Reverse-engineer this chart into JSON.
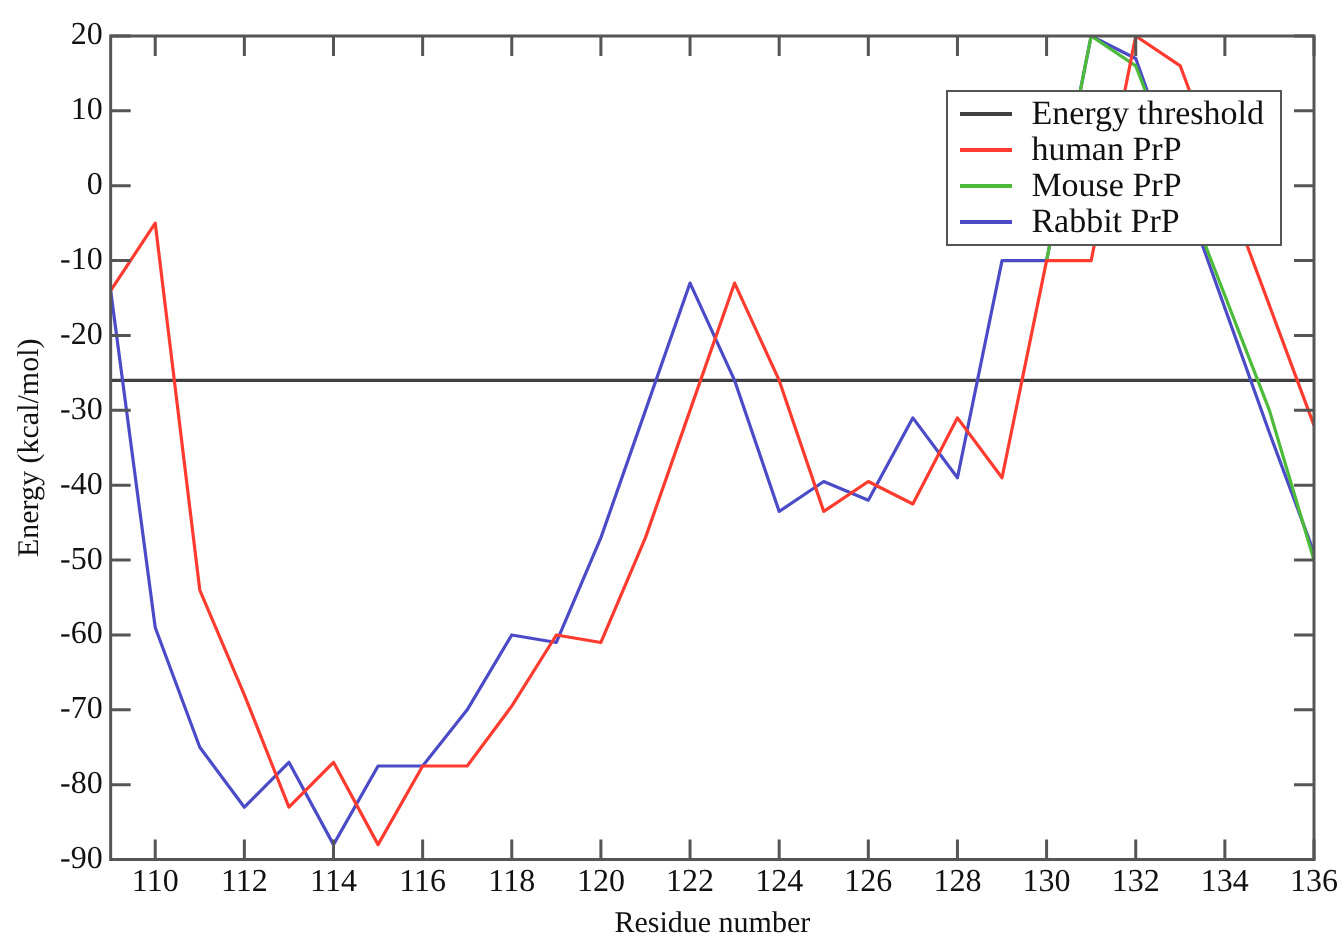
{
  "chart_data": {
    "type": "line",
    "xlabel": "Residue number",
    "ylabel": "Energy (kcal/mol)",
    "x": [
      109,
      110,
      111,
      112,
      113,
      114,
      115,
      116,
      117,
      118,
      119,
      120,
      121,
      122,
      123,
      124,
      125,
      126,
      127,
      128,
      129,
      130,
      131,
      132,
      133,
      134,
      135,
      136
    ],
    "series": [
      {
        "name": "human PrP",
        "color": "#ff3b2f",
        "values": [
          -14,
          -5,
          -54,
          -68,
          -83,
          -77,
          -88,
          -77.5,
          -77.5,
          -69.5,
          -60,
          -61,
          -47,
          -30,
          -13,
          -26,
          -43.5,
          -39.5,
          -42.5,
          -31,
          -39,
          -10,
          -10,
          20,
          16,
          null,
          null,
          -32
        ]
      },
      {
        "name": "Mouse PrP",
        "color": "#4cbb3a",
        "values": [
          null,
          null,
          null,
          null,
          null,
          null,
          null,
          null,
          null,
          null,
          null,
          null,
          null,
          null,
          null,
          null,
          null,
          null,
          null,
          null,
          null,
          -10,
          20,
          16,
          null,
          null,
          -30,
          -50
        ]
      },
      {
        "name": "Rabbit PrP",
        "color": "#4b4bc8",
        "values": [
          -14,
          -59,
          -75,
          -83,
          -77,
          -88,
          -77.5,
          -77.5,
          -70,
          -60,
          -61,
          -47,
          -30,
          -13,
          -26,
          -43.5,
          -39.5,
          -42,
          -31,
          -39,
          -10,
          -10,
          20,
          17,
          null,
          null,
          -33,
          -49
        ]
      }
    ],
    "ref_lines": [
      {
        "axis": "y",
        "value": -26,
        "label": "Energy threshold",
        "color": "#404040"
      }
    ],
    "xlim": [
      109,
      136
    ],
    "xticks": [
      110,
      112,
      114,
      116,
      118,
      120,
      122,
      124,
      126,
      128,
      130,
      132,
      134,
      136
    ],
    "ylim": [
      -90,
      20
    ],
    "yticks": [
      -90,
      -80,
      -70,
      -60,
      -50,
      -40,
      -30,
      -20,
      -10,
      0,
      10,
      20
    ],
    "grid": false,
    "legend": "top right",
    "marker": "none",
    "line_style": "solid"
  }
}
